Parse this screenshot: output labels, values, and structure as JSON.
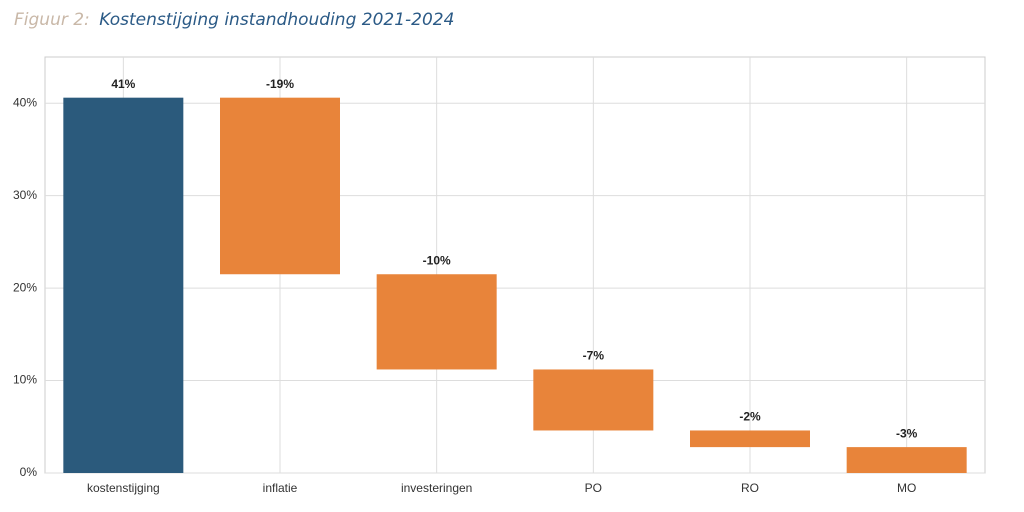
{
  "chart_data": {
    "type": "waterfall",
    "figure_label": "Figuur 2:",
    "title": "Kostenstijging instandhouding 2021-2024",
    "categories": [
      "kostenstijging",
      "inflatie",
      "investeringen",
      "PO",
      "RO",
      "MO"
    ],
    "values": [
      40.6,
      -19.1,
      -10.3,
      -6.6,
      -1.8,
      -2.8
    ],
    "value_labels": [
      "41%",
      "-19%",
      "-10%",
      "-7%",
      "-2%",
      "-3%"
    ],
    "total_color": "#2b5a7c",
    "change_color": "#e8843a",
    "ylim": [
      0,
      45
    ],
    "yticks": [
      {
        "value": 0,
        "label": "0%"
      },
      {
        "value": 10,
        "label": "10%"
      },
      {
        "value": 20,
        "label": "20%"
      },
      {
        "value": 30,
        "label": "30%"
      },
      {
        "value": 40,
        "label": "40%"
      }
    ],
    "grid": true
  }
}
